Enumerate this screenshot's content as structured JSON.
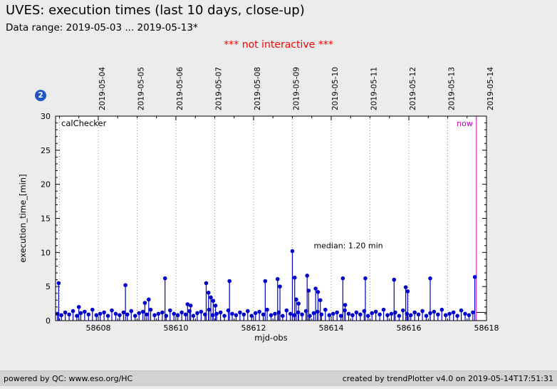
{
  "header": {
    "title": "UVES: execution times (last 10 days, close-up)",
    "data_range": "Data range: 2019-05-03 ... 2019-05-13*"
  },
  "notice": "*** not interactive ***",
  "badge": "2",
  "footer": {
    "left": "powered by QC: www.eso.org/HC",
    "right": "created by trendPlotter v4.0 on 2019-05-14T17:51:31"
  },
  "chart_data": {
    "type": "scatter",
    "style": "stem-scatter",
    "title": "UVES: execution times (last 10 days, close-up)",
    "xlabel": "mjd-obs",
    "ylabel": "execution_time_[min]",
    "xlim": [
      58606.9,
      58618.0
    ],
    "ylim": [
      0,
      30
    ],
    "grid": "vertical-dotted-daily",
    "legend_position": "none",
    "x_ticks": [
      58608,
      58610,
      58612,
      58614,
      58616,
      58618
    ],
    "y_ticks": [
      0,
      5,
      10,
      15,
      20,
      25,
      30
    ],
    "day_gridlines": [
      58607,
      58608,
      58609,
      58610,
      58611,
      58612,
      58613,
      58614,
      58615,
      58616,
      58617
    ],
    "top_date_labels": [
      {
        "mjd": 58608,
        "label": "2019-05-04"
      },
      {
        "mjd": 58609,
        "label": "2019-05-05"
      },
      {
        "mjd": 58610,
        "label": "2019-05-06"
      },
      {
        "mjd": 58611,
        "label": "2019-05-07"
      },
      {
        "mjd": 58612,
        "label": "2019-05-08"
      },
      {
        "mjd": 58613,
        "label": "2019-05-09"
      },
      {
        "mjd": 58614,
        "label": "2019-05-10"
      },
      {
        "mjd": 58615,
        "label": "2019-05-11"
      },
      {
        "mjd": 58616,
        "label": "2019-05-12"
      },
      {
        "mjd": 58617,
        "label": "2019-05-13"
      },
      {
        "mjd": 58618,
        "label": "2019-05-14"
      }
    ],
    "median": {
      "label": "median: 1.20 min",
      "value": 1.2,
      "text_x": 58613.55,
      "text_y": 10.6
    },
    "now": {
      "label": "now",
      "mjd": 58617.74,
      "color": "#bf00bf"
    },
    "series": [
      {
        "name": "calChecker",
        "color": "#0000cd",
        "points": [
          [
            58606.95,
            1.0
          ],
          [
            58607.05,
            0.8
          ],
          [
            58607.15,
            1.2
          ],
          [
            58607.25,
            0.9
          ],
          [
            58607.35,
            1.4
          ],
          [
            58607.45,
            0.7
          ],
          [
            58607.55,
            1.1
          ],
          [
            58607.65,
            1.3
          ],
          [
            58607.75,
            0.9
          ],
          [
            58607.85,
            1.6
          ],
          [
            58607.95,
            0.8
          ],
          [
            58608.05,
            1.0
          ],
          [
            58608.15,
            1.2
          ],
          [
            58608.25,
            0.7
          ],
          [
            58608.35,
            1.5
          ],
          [
            58608.45,
            1.0
          ],
          [
            58608.55,
            0.8
          ],
          [
            58608.65,
            1.2
          ],
          [
            58608.75,
            0.9
          ],
          [
            58608.85,
            1.4
          ],
          [
            58608.95,
            0.7
          ],
          [
            58609.05,
            1.1
          ],
          [
            58609.15,
            1.3
          ],
          [
            58609.25,
            0.9
          ],
          [
            58609.35,
            1.6
          ],
          [
            58609.45,
            0.8
          ],
          [
            58609.55,
            1.0
          ],
          [
            58609.65,
            1.2
          ],
          [
            58609.75,
            0.7
          ],
          [
            58609.85,
            1.5
          ],
          [
            58609.95,
            1.0
          ],
          [
            58610.05,
            0.8
          ],
          [
            58610.15,
            1.2
          ],
          [
            58610.25,
            0.9
          ],
          [
            58610.35,
            1.4
          ],
          [
            58610.45,
            0.7
          ],
          [
            58610.55,
            1.1
          ],
          [
            58610.65,
            1.3
          ],
          [
            58610.75,
            0.9
          ],
          [
            58610.85,
            1.6
          ],
          [
            58610.95,
            0.8
          ],
          [
            58611.05,
            1.0
          ],
          [
            58611.15,
            1.2
          ],
          [
            58611.25,
            0.7
          ],
          [
            58611.35,
            1.5
          ],
          [
            58611.45,
            1.0
          ],
          [
            58611.55,
            0.8
          ],
          [
            58611.65,
            1.2
          ],
          [
            58611.75,
            0.9
          ],
          [
            58611.85,
            1.4
          ],
          [
            58611.95,
            0.7
          ],
          [
            58612.05,
            1.1
          ],
          [
            58612.15,
            1.3
          ],
          [
            58612.25,
            0.9
          ],
          [
            58612.35,
            1.6
          ],
          [
            58612.45,
            0.8
          ],
          [
            58612.55,
            1.0
          ],
          [
            58612.65,
            1.2
          ],
          [
            58612.75,
            0.7
          ],
          [
            58612.85,
            1.5
          ],
          [
            58612.95,
            1.0
          ],
          [
            58613.05,
            0.8
          ],
          [
            58613.15,
            1.2
          ],
          [
            58613.25,
            0.9
          ],
          [
            58613.35,
            1.4
          ],
          [
            58613.45,
            0.7
          ],
          [
            58613.55,
            1.1
          ],
          [
            58613.65,
            1.3
          ],
          [
            58613.75,
            0.9
          ],
          [
            58613.85,
            1.6
          ],
          [
            58613.95,
            0.8
          ],
          [
            58614.05,
            1.0
          ],
          [
            58614.15,
            1.2
          ],
          [
            58614.25,
            0.7
          ],
          [
            58614.35,
            1.5
          ],
          [
            58614.45,
            1.0
          ],
          [
            58614.55,
            0.8
          ],
          [
            58614.65,
            1.2
          ],
          [
            58614.75,
            0.9
          ],
          [
            58614.85,
            1.4
          ],
          [
            58614.95,
            0.7
          ],
          [
            58615.05,
            1.1
          ],
          [
            58615.15,
            1.3
          ],
          [
            58615.25,
            0.9
          ],
          [
            58615.35,
            1.6
          ],
          [
            58615.45,
            0.8
          ],
          [
            58615.55,
            1.0
          ],
          [
            58615.65,
            1.2
          ],
          [
            58615.75,
            0.7
          ],
          [
            58615.85,
            1.5
          ],
          [
            58615.95,
            1.0
          ],
          [
            58616.05,
            0.8
          ],
          [
            58616.15,
            1.2
          ],
          [
            58616.25,
            0.9
          ],
          [
            58616.35,
            1.4
          ],
          [
            58616.45,
            0.7
          ],
          [
            58616.55,
            1.1
          ],
          [
            58616.65,
            1.3
          ],
          [
            58616.75,
            0.9
          ],
          [
            58616.85,
            1.6
          ],
          [
            58616.95,
            0.8
          ],
          [
            58617.05,
            1.0
          ],
          [
            58617.15,
            1.2
          ],
          [
            58617.25,
            0.7
          ],
          [
            58617.35,
            1.5
          ],
          [
            58617.45,
            1.0
          ],
          [
            58617.55,
            0.8
          ],
          [
            58617.65,
            1.2
          ],
          [
            58606.98,
            5.5
          ],
          [
            58607.5,
            2.0
          ],
          [
            58608.7,
            5.2
          ],
          [
            58609.2,
            2.6
          ],
          [
            58609.3,
            3.1
          ],
          [
            58609.72,
            6.2
          ],
          [
            58610.3,
            2.4
          ],
          [
            58610.38,
            2.2
          ],
          [
            58610.78,
            5.5
          ],
          [
            58610.84,
            4.1
          ],
          [
            58610.9,
            3.4
          ],
          [
            58610.96,
            2.9
          ],
          [
            58611.02,
            2.2
          ],
          [
            58611.38,
            5.8
          ],
          [
            58612.3,
            5.8
          ],
          [
            58612.62,
            6.1
          ],
          [
            58612.68,
            5.0
          ],
          [
            58613.0,
            10.2
          ],
          [
            58613.06,
            6.3
          ],
          [
            58613.1,
            3.1
          ],
          [
            58613.16,
            2.5
          ],
          [
            58613.38,
            6.6
          ],
          [
            58613.42,
            4.4
          ],
          [
            58613.6,
            4.7
          ],
          [
            58613.66,
            4.2
          ],
          [
            58613.72,
            3.0
          ],
          [
            58614.3,
            6.2
          ],
          [
            58614.36,
            2.3
          ],
          [
            58614.88,
            6.2
          ],
          [
            58615.62,
            6.0
          ],
          [
            58615.92,
            4.9
          ],
          [
            58615.97,
            4.3
          ],
          [
            58616.55,
            6.2
          ],
          [
            58617.7,
            6.4
          ]
        ]
      }
    ]
  }
}
